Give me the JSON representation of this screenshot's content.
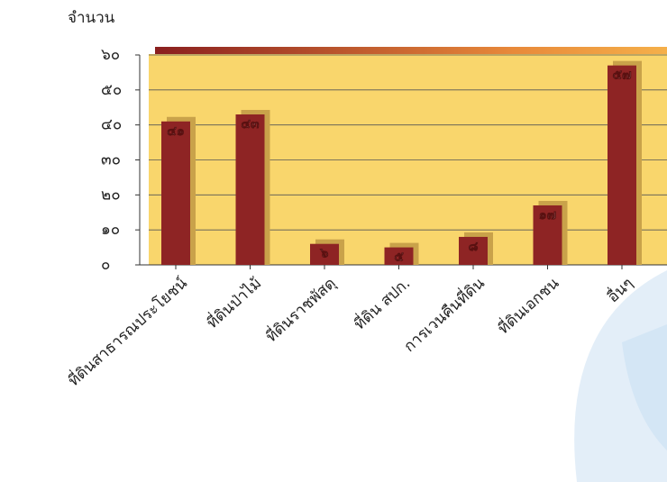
{
  "chart_data": {
    "type": "bar",
    "ylabel": "จำนวน",
    "categories": [
      "ที่ดินสาธารณประโยชน์",
      "ที่ดินป่าไม้",
      "ที่ดินราชพัสดุ",
      "ที่ดิน สปก.",
      "การเวนคืนที่ดิน",
      "ที่ดินเอกชน",
      "อื่นๆ"
    ],
    "values": [
      41,
      43,
      6,
      5,
      8,
      17,
      57
    ],
    "value_labels": [
      "๔๑",
      "๔๓",
      "๖",
      "๕",
      "๘",
      "๑๗",
      "๕๗"
    ],
    "color": "#8e2424",
    "ylim": [
      0,
      60
    ],
    "yticks": [
      {
        "value": 0,
        "label": "๐"
      },
      {
        "value": 10,
        "label": "๑๐"
      },
      {
        "value": 20,
        "label": "๒๐"
      },
      {
        "value": 30,
        "label": "๓๐"
      },
      {
        "value": 40,
        "label": "๔๐"
      },
      {
        "value": 50,
        "label": "๕๐"
      },
      {
        "value": 60,
        "label": "๖๐"
      }
    ],
    "grid": true
  }
}
